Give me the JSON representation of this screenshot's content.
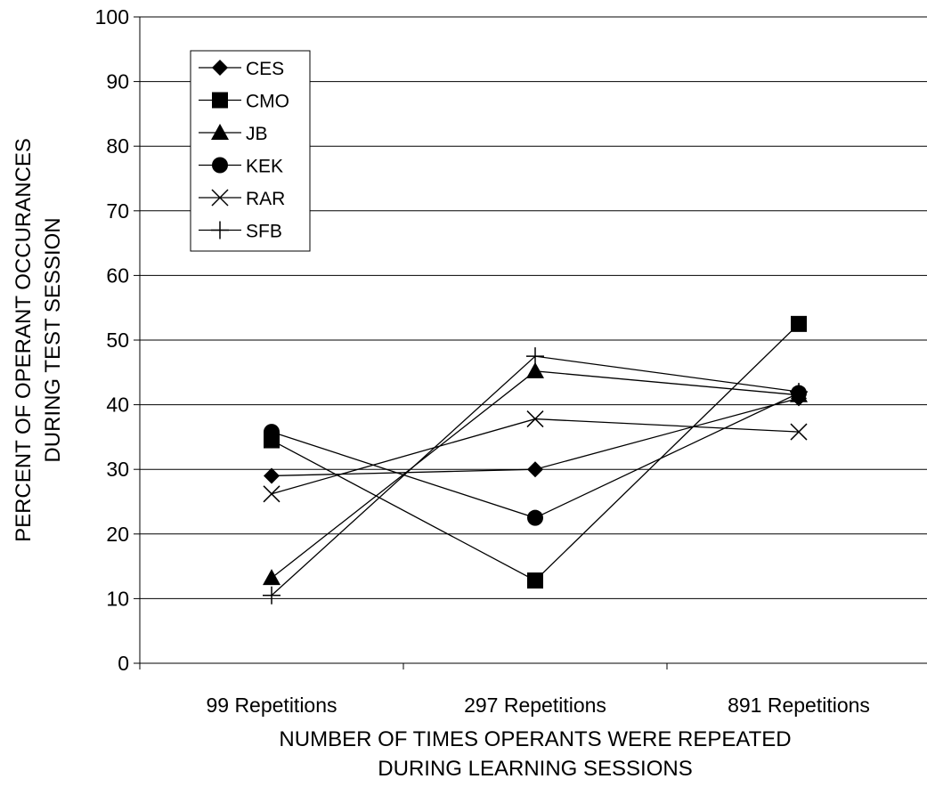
{
  "chart_data": {
    "type": "line",
    "categories": [
      "99 Repetitions",
      "297 Repetitions",
      "891 Repetitions"
    ],
    "xlabel": [
      "NUMBER OF TIMES OPERANTS WERE REPEATED",
      "DURING LEARNING SESSIONS"
    ],
    "ylabel": [
      "PERCENT OF OPERANT OCCURANCES",
      "DURING TEST SESSION"
    ],
    "ylim": [
      0,
      100
    ],
    "yticks": [
      0,
      10,
      20,
      30,
      40,
      50,
      60,
      70,
      80,
      90,
      100
    ],
    "ytick_labels": [
      "0",
      "10",
      "20",
      "30",
      "40",
      "50",
      "60",
      "70",
      "80",
      "90",
      "100"
    ],
    "grid": "horizontal",
    "legend_position": "top-left",
    "series": [
      {
        "name": "CES",
        "marker": "diamond",
        "values": [
          29,
          30,
          41
        ]
      },
      {
        "name": "CMO",
        "marker": "square",
        "values": [
          34.5,
          12.8,
          52.5
        ]
      },
      {
        "name": "JB",
        "marker": "triangle",
        "values": [
          13.2,
          45.2,
          41.5
        ]
      },
      {
        "name": "KEK",
        "marker": "circle",
        "values": [
          35.8,
          22.5,
          41.8
        ]
      },
      {
        "name": "RAR",
        "marker": "x",
        "values": [
          26.2,
          37.8,
          35.8
        ]
      },
      {
        "name": "SFB",
        "marker": "plus",
        "values": [
          10.5,
          47.5,
          42
        ]
      }
    ],
    "line_color": "#000000"
  }
}
